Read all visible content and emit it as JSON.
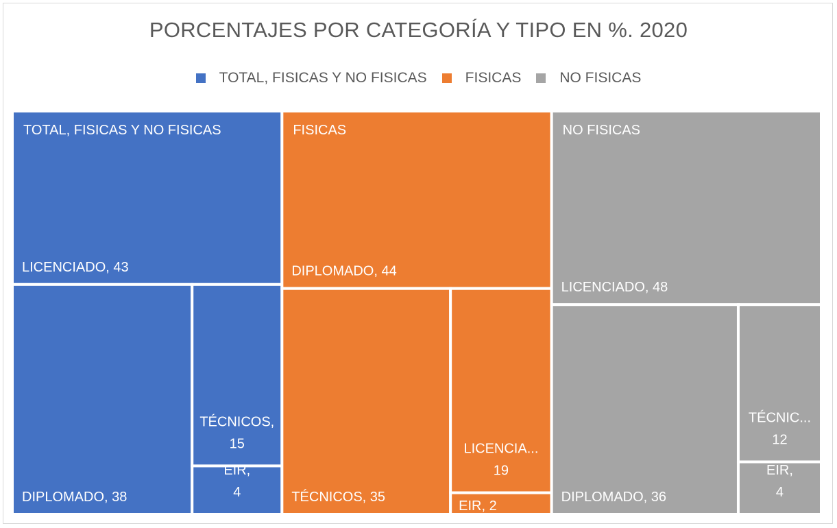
{
  "chart_data": {
    "type": "treemap",
    "title": "PORCENTAJES POR CATEGORÍA Y TIPO EN %. 2020",
    "legend_position": "top",
    "groups": [
      {
        "name": "TOTAL, FISICAS Y NO FISICAS",
        "color": "#4472C4",
        "items": [
          {
            "label": "LICENCIADO, 43",
            "category": "LICENCIADO",
            "value": 43
          },
          {
            "label": "DIPLOMADO, 38",
            "category": "DIPLOMADO",
            "value": 38
          },
          {
            "label": "TÉCNICOS, 15",
            "category": "TÉCNICOS",
            "value": 15
          },
          {
            "label": "EIR, 4",
            "category": "EIR",
            "value": 4
          }
        ]
      },
      {
        "name": "FISICAS",
        "color": "#ED7D31",
        "items": [
          {
            "label": "DIPLOMADO, 44",
            "category": "DIPLOMADO",
            "value": 44
          },
          {
            "label": "TÉCNICOS, 35",
            "category": "TÉCNICOS",
            "value": 35
          },
          {
            "label": "LICENCIA... 19",
            "category": "LICENCIADO",
            "value": 19
          },
          {
            "label": "EIR, 2",
            "category": "EIR",
            "value": 2
          }
        ]
      },
      {
        "name": "NO FISICAS",
        "color": "#A5A5A5",
        "items": [
          {
            "label": "LICENCIADO, 48",
            "category": "LICENCIADO",
            "value": 48
          },
          {
            "label": "DIPLOMADO, 36",
            "category": "DIPLOMADO",
            "value": 36
          },
          {
            "label": "TÉCNIC... 12",
            "category": "TÉCNICOS",
            "value": 12
          },
          {
            "label": "EIR, 4",
            "category": "EIR",
            "value": 4
          }
        ]
      }
    ]
  }
}
